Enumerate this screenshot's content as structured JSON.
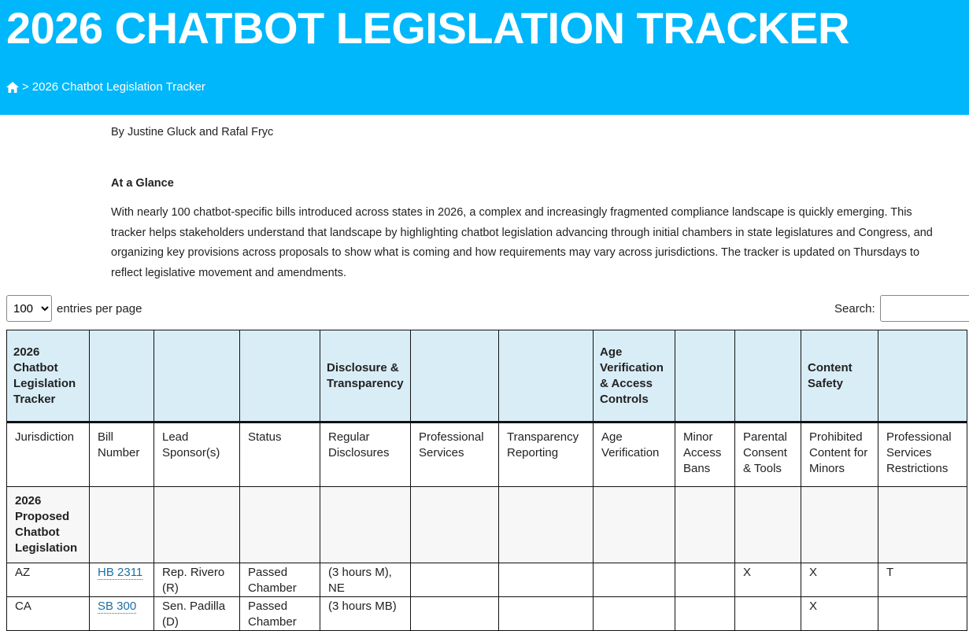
{
  "header": {
    "title": "2026 CHATBOT LEGISLATION TRACKER",
    "breadcrumb_separator": ">",
    "breadcrumb_current": "2026 Chatbot Legislation Tracker",
    "brand_color": "#00b7fb"
  },
  "article": {
    "byline": "By Justine Gluck and Rafal Fryc",
    "section_heading": "At a Glance",
    "intro": "With nearly 100 chatbot-specific bills introduced across states in 2026, a complex and increasingly fragmented compliance landscape is quickly emerging. This tracker helps stakeholders understand that landscape by highlighting chatbot legislation advancing through initial chambers in state legislatures and Congress, and organizing key provisions across proposals to show what is coming and how requirements may vary across jurisdictions. The tracker is updated on Thursdays to reflect legislative movement and amendments."
  },
  "controls": {
    "page_length_value": "100",
    "page_length_label": "entries per page",
    "search_label": "Search:",
    "search_value": ""
  },
  "table": {
    "group_headers": [
      "2026 Chatbot Legislation Tracker",
      "",
      "",
      "",
      "Disclosure & Transparency",
      "",
      "",
      "Age Verification & Access Controls",
      "",
      "",
      "Content Safety",
      ""
    ],
    "columns": [
      "Jurisdiction",
      "Bill Number",
      "Lead Sponsor(s)",
      "Status",
      "Regular Disclosures",
      "Professional Services",
      "Transparency Reporting",
      "Age Verification",
      "Minor Access Bans",
      "Parental Consent & Tools",
      "Prohibited Content for Minors",
      "Professional Services Restrictions"
    ],
    "section_label": "2026 Proposed Chatbot Legislation",
    "rows": [
      {
        "cells": [
          "AZ",
          "HB 2311",
          "Rep. Rivero (R)",
          "Passed Chamber",
          "(3 hours M), NE",
          "",
          "",
          "",
          "",
          "X",
          "X",
          "T"
        ]
      },
      {
        "cells": [
          "CA",
          "SB 300",
          "Sen. Padilla (D)",
          "Passed Chamber",
          "(3 hours MB)",
          "",
          "",
          "",
          "",
          "",
          "X",
          ""
        ]
      }
    ]
  }
}
